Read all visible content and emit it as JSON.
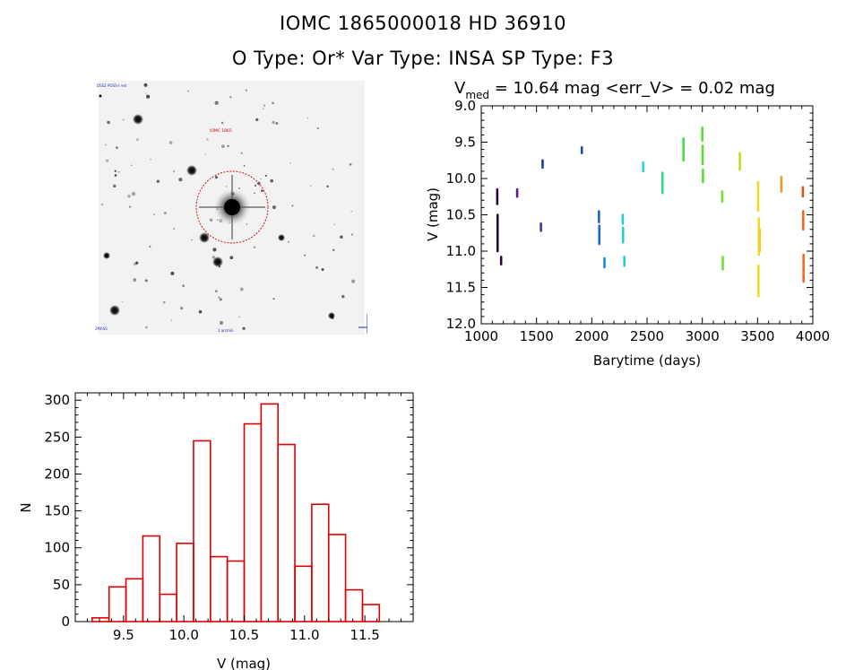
{
  "header": {
    "title_line1": "IOMC 1865000018    HD  36910",
    "title_line2": "O Type: Or*  Var Type: INSA   SP Type: F3"
  },
  "sky_image": {
    "labels": {
      "top_left": "DSS2 POSS-I red",
      "target": "IOMC 1865",
      "bottom_left": "2MASS",
      "bottom_center": "1 arcmin"
    },
    "circle_color": "#cc0000"
  },
  "colors": {
    "histogram": "#dd0000",
    "axis": "#000000"
  },
  "chart_data": [
    {
      "type": "scatter",
      "title": "V_med = 10.64 mag <err_V> = 0.02 mag",
      "title_parts": {
        "v": "V",
        "sub": "med",
        "rest": " = 10.64 mag <err_V> = 0.02 mag"
      },
      "xlabel": "Barytime (days)",
      "ylabel": "V (mag)",
      "xlim": [
        1000,
        4000
      ],
      "ylim": [
        12.0,
        9.0
      ],
      "y_inverted": true,
      "xticks": [
        1000,
        1500,
        2000,
        2500,
        3000,
        3500,
        4000
      ],
      "xtick_labels": [
        "1000",
        "1500",
        "2000",
        "2500",
        "3000",
        "3500",
        "4000"
      ],
      "yticks": [
        9.0,
        9.5,
        10.0,
        10.5,
        11.0,
        11.5,
        12.0
      ],
      "ytick_labels": [
        "9.0",
        "9.5",
        "10.0",
        "10.5",
        "11.0",
        "11.5",
        "12.0"
      ],
      "segments": [
        {
          "x": 1145,
          "y1": 10.15,
          "y2": 10.35,
          "color": "#2a0035"
        },
        {
          "x": 1148,
          "y1": 10.5,
          "y2": 11.0,
          "color": "#2a0035"
        },
        {
          "x": 1180,
          "y1": 11.08,
          "y2": 11.18,
          "color": "#300040"
        },
        {
          "x": 1325,
          "y1": 10.15,
          "y2": 10.25,
          "color": "#5a1a88"
        },
        {
          "x": 1540,
          "y1": 10.62,
          "y2": 10.72,
          "color": "#4a2fa8"
        },
        {
          "x": 1555,
          "y1": 9.75,
          "y2": 9.85,
          "color": "#2233aa"
        },
        {
          "x": 1910,
          "y1": 9.57,
          "y2": 9.65,
          "color": "#2244bb"
        },
        {
          "x": 2065,
          "y1": 10.45,
          "y2": 10.6,
          "color": "#1a66cc"
        },
        {
          "x": 2068,
          "y1": 10.65,
          "y2": 10.9,
          "color": "#1a66cc"
        },
        {
          "x": 2115,
          "y1": 11.1,
          "y2": 11.22,
          "color": "#1a88dd"
        },
        {
          "x": 2280,
          "y1": 10.5,
          "y2": 10.62,
          "color": "#22ccdd"
        },
        {
          "x": 2283,
          "y1": 10.68,
          "y2": 10.88,
          "color": "#22ccdd"
        },
        {
          "x": 2295,
          "y1": 11.08,
          "y2": 11.2,
          "color": "#22ccdd"
        },
        {
          "x": 2465,
          "y1": 9.78,
          "y2": 9.9,
          "color": "#22ddcc"
        },
        {
          "x": 2640,
          "y1": 9.92,
          "y2": 10.2,
          "color": "#33dd88"
        },
        {
          "x": 2830,
          "y1": 9.45,
          "y2": 9.75,
          "color": "#44dd44"
        },
        {
          "x": 3000,
          "y1": 9.3,
          "y2": 9.48,
          "color": "#55dd33"
        },
        {
          "x": 3003,
          "y1": 9.55,
          "y2": 9.8,
          "color": "#55dd33"
        },
        {
          "x": 3006,
          "y1": 9.88,
          "y2": 10.05,
          "color": "#55dd33"
        },
        {
          "x": 3180,
          "y1": 10.18,
          "y2": 10.32,
          "color": "#77dd33"
        },
        {
          "x": 3185,
          "y1": 11.08,
          "y2": 11.25,
          "color": "#77dd33"
        },
        {
          "x": 3340,
          "y1": 9.65,
          "y2": 9.88,
          "color": "#bbdd22"
        },
        {
          "x": 3505,
          "y1": 10.05,
          "y2": 10.45,
          "color": "#eedd22"
        },
        {
          "x": 3512,
          "y1": 10.55,
          "y2": 11.05,
          "color": "#eedd22"
        },
        {
          "x": 3508,
          "y1": 11.2,
          "y2": 11.62,
          "color": "#eedd22"
        },
        {
          "x": 3520,
          "y1": 10.7,
          "y2": 11.0,
          "color": "#eecc22"
        },
        {
          "x": 3715,
          "y1": 9.98,
          "y2": 10.18,
          "color": "#ee9922"
        },
        {
          "x": 3910,
          "y1": 10.12,
          "y2": 10.25,
          "color": "#dd5511"
        },
        {
          "x": 3913,
          "y1": 10.45,
          "y2": 10.7,
          "color": "#ee6622"
        },
        {
          "x": 3916,
          "y1": 11.05,
          "y2": 11.42,
          "color": "#ee6622"
        }
      ]
    },
    {
      "type": "bar",
      "subtype": "histogram",
      "xlabel": "V (mag)",
      "ylabel": "N",
      "xlim": [
        9.1,
        11.9
      ],
      "ylim": [
        0,
        310
      ],
      "xticks": [
        9.5,
        10.0,
        10.5,
        11.0,
        11.5
      ],
      "xtick_labels": [
        "9.5",
        "10.0",
        "10.5",
        "11.0",
        "11.5"
      ],
      "yticks": [
        0,
        50,
        100,
        150,
        200,
        250,
        300
      ],
      "ytick_labels": [
        "0",
        "50",
        "100",
        "150",
        "200",
        "250",
        "300"
      ],
      "bin_width": 0.14,
      "bin_start": 9.24,
      "values": [
        5,
        47,
        58,
        116,
        37,
        106,
        245,
        88,
        82,
        268,
        295,
        240,
        75,
        159,
        118,
        43,
        23
      ]
    }
  ]
}
